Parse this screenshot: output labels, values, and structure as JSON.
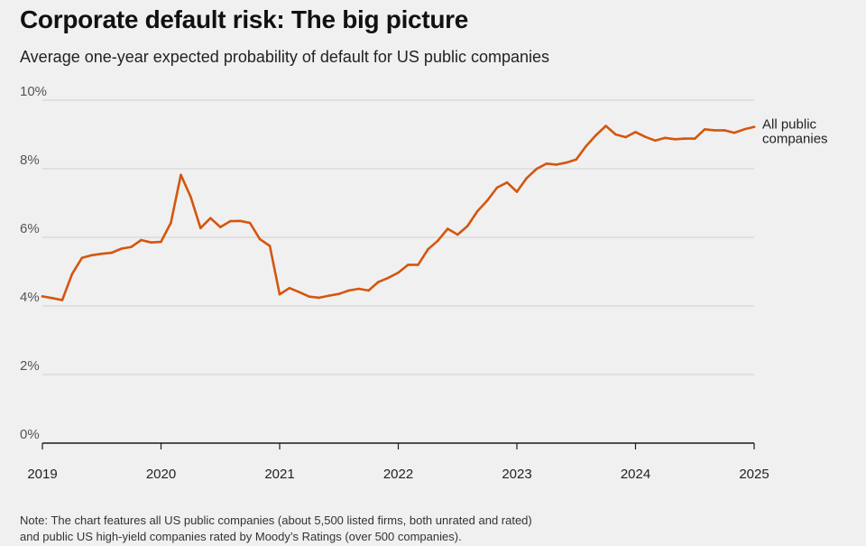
{
  "title": "Corporate default risk: The big picture",
  "subtitle": "Average one-year expected probability of default for US public companies",
  "note": {
    "line1": "Note: The chart features all US public companies (about 5,500 listed firms, both unrated and rated)",
    "line2": "and public US high-yield companies rated by Moody’s Ratings (over 500 companies)."
  },
  "colors": {
    "series": "#d4560f",
    "grid": "#cfcfcf",
    "axis": "#1a1a1a",
    "background": "#f0f0f0"
  },
  "chart_data": {
    "type": "line",
    "title": "Corporate default risk: The big picture",
    "subtitle": "Average one-year expected probability of default for US public companies",
    "xlabel": "",
    "ylabel": "",
    "xlim": [
      2019,
      2025
    ],
    "ylim": [
      0,
      10
    ],
    "x_ticks": [
      "2019",
      "2020",
      "2021",
      "2022",
      "2023",
      "2024",
      "2025"
    ],
    "y_ticks": [
      "0%",
      "2%",
      "4%",
      "6%",
      "8%",
      "10%"
    ],
    "grid": true,
    "series": [
      {
        "name": "All public companies",
        "label_lines": [
          "All public",
          "companies"
        ],
        "x": [
          2019.0,
          2019.083,
          2019.167,
          2019.25,
          2019.333,
          2019.417,
          2019.5,
          2019.583,
          2019.667,
          2019.75,
          2019.833,
          2019.917,
          2020.0,
          2020.083,
          2020.167,
          2020.25,
          2020.333,
          2020.417,
          2020.5,
          2020.583,
          2020.667,
          2020.75,
          2020.833,
          2020.917,
          2021.0,
          2021.083,
          2021.167,
          2021.25,
          2021.333,
          2021.417,
          2021.5,
          2021.583,
          2021.667,
          2021.75,
          2021.833,
          2021.917,
          2022.0,
          2022.083,
          2022.167,
          2022.25,
          2022.333,
          2022.417,
          2022.5,
          2022.583,
          2022.667,
          2022.75,
          2022.833,
          2022.917,
          2023.0,
          2023.083,
          2023.167,
          2023.25,
          2023.333,
          2023.417,
          2023.5,
          2023.583,
          2023.667,
          2023.75,
          2023.833,
          2023.917,
          2024.0,
          2024.083,
          2024.167,
          2024.25,
          2024.333,
          2024.417,
          2024.5,
          2024.583,
          2024.667,
          2024.75,
          2024.833,
          2024.917,
          2025.0
        ],
        "values": [
          4.28,
          4.23,
          4.17,
          4.93,
          5.4,
          5.48,
          5.52,
          5.55,
          5.67,
          5.72,
          5.92,
          5.85,
          5.87,
          6.42,
          7.82,
          7.18,
          6.27,
          6.56,
          6.3,
          6.47,
          6.48,
          6.42,
          5.95,
          5.75,
          4.34,
          4.52,
          4.4,
          4.27,
          4.24,
          4.3,
          4.35,
          4.45,
          4.5,
          4.45,
          4.7,
          4.82,
          4.97,
          5.2,
          5.2,
          5.65,
          5.9,
          6.25,
          6.08,
          6.33,
          6.76,
          7.07,
          7.45,
          7.6,
          7.33,
          7.73,
          8.0,
          8.15,
          8.12,
          8.18,
          8.27,
          8.66,
          8.98,
          9.25,
          9.0,
          8.92,
          9.07,
          8.93,
          8.82,
          8.9,
          8.86,
          8.88,
          8.88,
          9.15,
          9.12,
          9.12,
          9.05,
          9.15,
          9.22
        ]
      }
    ]
  }
}
